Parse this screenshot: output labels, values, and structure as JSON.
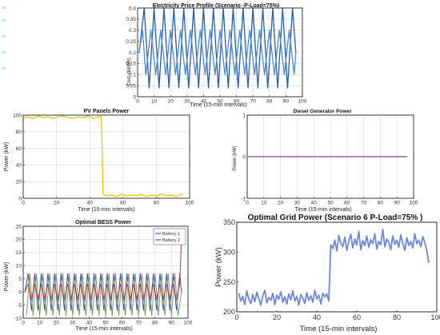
{
  "chart_data": [
    {
      "id": "price",
      "type": "line",
      "title": "Electricity Price Profile (Scenario -P-Load=75%)",
      "xlabel": "Time (15-min intervals)",
      "ylabel": "Cost ($/kWh)",
      "xlim": [
        0,
        100
      ],
      "ylim": [
        0,
        0.4
      ],
      "xticks": [
        0,
        10,
        20,
        30,
        40,
        50,
        60,
        70,
        80,
        90,
        100
      ],
      "yticks": [
        0,
        0.05,
        0.1,
        0.15,
        0.2,
        0.25,
        0.3,
        0.35,
        0.4
      ],
      "grid": true,
      "series": [
        {
          "color": "#1f5fb3",
          "x": [
            1,
            4,
            7,
            10,
            13,
            16,
            19,
            22,
            25,
            28,
            31,
            34,
            37,
            40,
            43,
            46,
            49,
            52,
            55,
            58,
            61,
            64,
            67,
            70,
            73,
            76,
            79,
            82,
            85,
            88,
            91,
            94,
            96
          ],
          "y": [
            0.2,
            0.4,
            0.04,
            0.4,
            0.04,
            0.4,
            0.04,
            0.4,
            0.04,
            0.4,
            0.04,
            0.4,
            0.04,
            0.4,
            0.04,
            0.4,
            0.04,
            0.4,
            0.04,
            0.4,
            0.04,
            0.4,
            0.04,
            0.4,
            0.04,
            0.4,
            0.04,
            0.4,
            0.04,
            0.4,
            0.04,
            0.4,
            0.2
          ]
        },
        {
          "color": "#4d88d9",
          "x": [
            1,
            3,
            5,
            8,
            11,
            14,
            17,
            20,
            23,
            26,
            29,
            32,
            35,
            38,
            41,
            44,
            47,
            50,
            53,
            56,
            59,
            62,
            65,
            68,
            71,
            74,
            77,
            80,
            83,
            86,
            89,
            92,
            95,
            96
          ],
          "y": [
            0.2,
            0.3,
            0.1,
            0.3,
            0.1,
            0.3,
            0.1,
            0.3,
            0.1,
            0.3,
            0.1,
            0.3,
            0.1,
            0.3,
            0.1,
            0.3,
            0.1,
            0.3,
            0.1,
            0.3,
            0.1,
            0.3,
            0.1,
            0.3,
            0.1,
            0.3,
            0.1,
            0.3,
            0.1,
            0.3,
            0.1,
            0.3,
            0.1,
            0.2
          ]
        }
      ]
    },
    {
      "id": "pv",
      "type": "line",
      "title": "PV Panels Power",
      "xlabel": "Time (15-min intervals)",
      "ylabel": "Power (kW)",
      "xlim": [
        0,
        100
      ],
      "ylim": [
        0,
        100
      ],
      "xticks": [
        0,
        20,
        40,
        60,
        80,
        100
      ],
      "yticks": [
        0,
        20,
        40,
        60,
        80,
        100
      ],
      "grid": true,
      "series": [
        {
          "color": "#e3c600",
          "x": [
            0,
            3,
            6,
            9,
            12,
            15,
            18,
            21,
            24,
            27,
            30,
            33,
            36,
            39,
            42,
            45,
            47,
            48,
            50,
            53,
            56,
            59,
            62,
            65,
            68,
            71,
            74,
            77,
            80,
            83,
            86,
            89,
            92,
            95,
            96
          ],
          "y": [
            97,
            98,
            96,
            99,
            97,
            98,
            96,
            98,
            99,
            97,
            96,
            98,
            97,
            99,
            96,
            98,
            98,
            5,
            3,
            4,
            2,
            5,
            3,
            4,
            3,
            5,
            2,
            4,
            3,
            5,
            3,
            4,
            2,
            5,
            4
          ]
        }
      ]
    },
    {
      "id": "diesel",
      "type": "line",
      "title": "Diesel Generator Power",
      "xlabel": "Time (15-min intervals)",
      "ylabel": "Power (kW)",
      "xlim": [
        0,
        100
      ],
      "ylim": [
        -1,
        1
      ],
      "xticks": [
        0,
        10,
        20,
        30,
        40,
        50,
        60,
        70,
        80,
        90,
        100
      ],
      "yticks": [
        -1,
        0,
        1
      ],
      "grid": true,
      "series": [
        {
          "color": "#7a3fb0",
          "x": [
            1,
            96
          ],
          "y": [
            0,
            0
          ]
        }
      ]
    },
    {
      "id": "bess",
      "type": "line",
      "title": "Optimal BESS Power",
      "xlabel": "Time (15-min intervals)",
      "ylabel": "Power (kW)",
      "xlim": [
        0,
        100
      ],
      "ylim": [
        -10,
        25
      ],
      "xticks": [
        0,
        10,
        20,
        30,
        40,
        50,
        60,
        70,
        80,
        90,
        100
      ],
      "yticks": [
        -10,
        -5,
        0,
        5,
        10,
        15,
        20,
        25
      ],
      "grid": true,
      "legend": "top-right",
      "series": [
        {
          "name": "Battery 1",
          "color": "#3b4cc0",
          "x": [
            1,
            3,
            5,
            7,
            9,
            11,
            13,
            15,
            17,
            19,
            21,
            23,
            25,
            27,
            29,
            31,
            33,
            35,
            37,
            39,
            41,
            43,
            45,
            47,
            49,
            51,
            53,
            55,
            57,
            59,
            61,
            63,
            65,
            67,
            69,
            71,
            73,
            75,
            77,
            79,
            81,
            83,
            85,
            87,
            89,
            91,
            93,
            95,
            96
          ],
          "y": [
            0,
            7,
            -7,
            7,
            -7,
            7,
            -7,
            7,
            -7,
            7,
            -7,
            7,
            -7,
            7,
            -7,
            7,
            -7,
            7,
            -7,
            7,
            -7,
            7,
            -7,
            7,
            -7,
            7,
            -7,
            7,
            -7,
            7,
            -7,
            7,
            -7,
            7,
            -7,
            7,
            -7,
            7,
            -7,
            7,
            -7,
            7,
            -7,
            7,
            -7,
            7,
            -7,
            7,
            0
          ]
        },
        {
          "name": "Battery 2",
          "color": "#c0392b",
          "x": [
            1,
            3,
            5,
            7,
            9,
            11,
            13,
            15,
            17,
            19,
            21,
            23,
            25,
            27,
            29,
            31,
            33,
            35,
            37,
            39,
            41,
            43,
            45,
            47,
            49,
            51,
            53,
            55,
            57,
            59,
            61,
            63,
            65,
            67,
            69,
            71,
            73,
            75,
            77,
            79,
            81,
            83,
            85,
            87,
            89,
            91,
            93,
            95,
            96
          ],
          "y": [
            0,
            3,
            -3,
            3,
            -3,
            3,
            -3,
            3,
            -3,
            3,
            -3,
            3,
            -3,
            3,
            -3,
            3,
            -3,
            3,
            -3,
            3,
            -3,
            3,
            -3,
            3,
            -3,
            3,
            -3,
            3,
            -3,
            3,
            -3,
            3,
            -3,
            3,
            -3,
            3,
            -3,
            3,
            -3,
            3,
            -3,
            3,
            -3,
            3,
            -3,
            3,
            -3,
            3,
            20
          ]
        },
        {
          "color": "#7a9a5a",
          "x": [
            2,
            4,
            6,
            8,
            10,
            12,
            14,
            16,
            18,
            20,
            22,
            24,
            26,
            28,
            30,
            32,
            34,
            36,
            38,
            40,
            42,
            44,
            46,
            48,
            50,
            52,
            54,
            56,
            58,
            60,
            62,
            64,
            66,
            68,
            70,
            72,
            74,
            76,
            78,
            80,
            82,
            84,
            86,
            88,
            90,
            92,
            94,
            96
          ],
          "y": [
            -9,
            7,
            -9,
            7,
            -9,
            7,
            -9,
            7,
            -9,
            7,
            -9,
            7,
            -9,
            7,
            -9,
            7,
            -9,
            7,
            -9,
            7,
            -9,
            7,
            -9,
            7,
            -9,
            7,
            -9,
            7,
            -9,
            7,
            -9,
            7,
            -9,
            7,
            -9,
            7,
            -9,
            7,
            -9,
            7,
            -9,
            7,
            -9,
            7,
            -9,
            7,
            -9,
            0
          ]
        }
      ]
    },
    {
      "id": "grid",
      "type": "line",
      "title": "Optimal Grid Power (Scenario 6 P-Load=75% )",
      "xlabel": "Time (15-min intervals)",
      "ylabel": "Power (kW)",
      "xlim": [
        0,
        100
      ],
      "ylim": [
        200,
        350
      ],
      "xticks": [
        0,
        20,
        40,
        60,
        80,
        100
      ],
      "yticks": [
        200,
        250,
        300,
        350
      ],
      "grid": false,
      "series": [
        {
          "color": "#6f86e0",
          "x": [
            1,
            2,
            3,
            4,
            5,
            6,
            7,
            8,
            9,
            10,
            11,
            12,
            13,
            14,
            15,
            16,
            17,
            18,
            19,
            20,
            21,
            22,
            23,
            24,
            25,
            26,
            27,
            28,
            29,
            30,
            31,
            32,
            33,
            34,
            35,
            36,
            37,
            38,
            39,
            40,
            41,
            42,
            43,
            44,
            45,
            46,
            47,
            48,
            49,
            50,
            51,
            52,
            53,
            54,
            55,
            56,
            57,
            58,
            59,
            60,
            61,
            62,
            63,
            64,
            65,
            66,
            67,
            68,
            69,
            70,
            71,
            72,
            73,
            74,
            75,
            76,
            77,
            78,
            79,
            80,
            81,
            82,
            83,
            84,
            85,
            86,
            87,
            88,
            89,
            90,
            91,
            92,
            93,
            94,
            95,
            96
          ],
          "y": [
            231,
            218,
            226,
            212,
            235,
            221,
            214,
            229,
            217,
            233,
            222,
            211,
            227,
            236,
            215,
            224,
            219,
            231,
            212,
            228,
            221,
            234,
            216,
            225,
            213,
            230,
            220,
            235,
            218,
            226,
            211,
            229,
            223,
            214,
            232,
            219,
            227,
            216,
            236,
            221,
            228,
            213,
            231,
            225,
            230,
            218,
            312,
            306,
            320,
            302,
            328,
            315,
            309,
            325,
            303,
            318,
            330,
            307,
            322,
            312,
            335,
            304,
            319,
            311,
            327,
            308,
            321,
            314,
            331,
            305,
            318,
            312,
            338,
            309,
            322,
            316,
            304,
            327,
            313,
            320,
            308,
            329,
            315,
            303,
            324,
            311,
            318,
            307,
            331,
            314,
            320,
            309,
            326,
            316,
            303,
            282
          ]
        }
      ]
    }
  ]
}
